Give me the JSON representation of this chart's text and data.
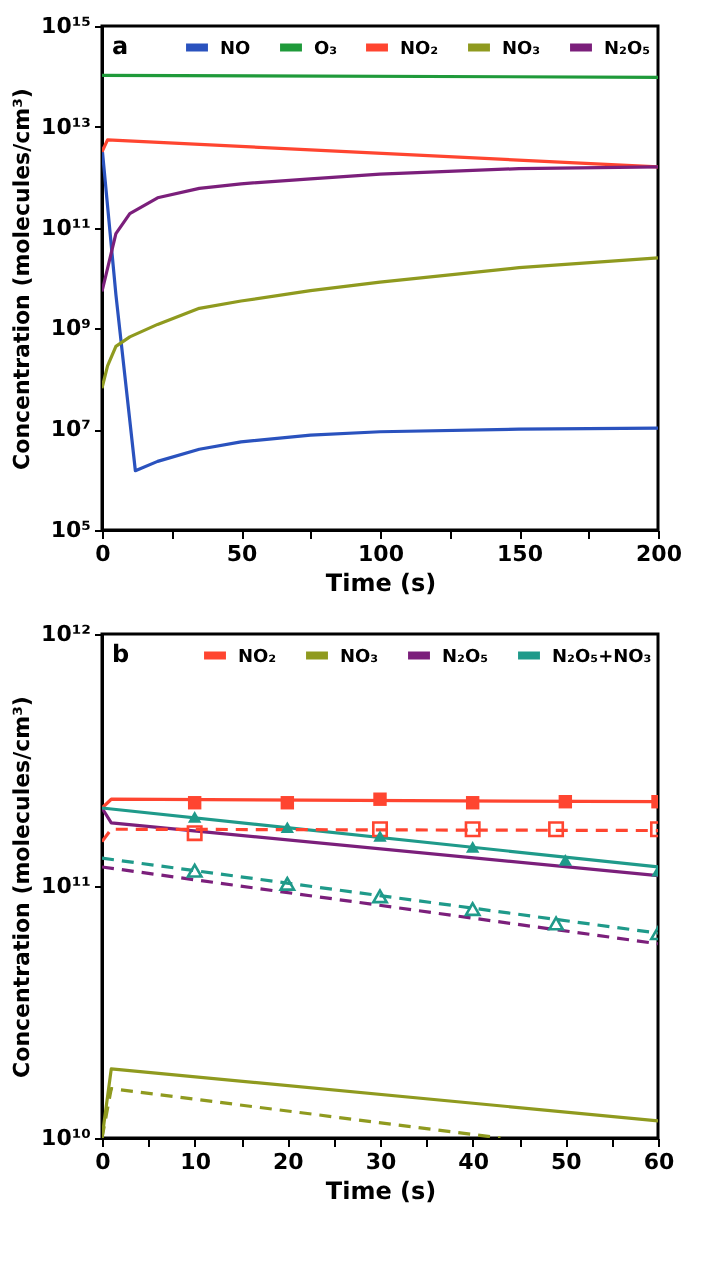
{
  "chart_data": [
    {
      "type": "line",
      "annotations": [
        "a"
      ],
      "xlabel": "Time (s)",
      "ylabel": "Concentration (molecules/cm³)",
      "log": "y",
      "legend": "top right",
      "grid": false,
      "xlim": [
        0,
        200
      ],
      "xticks": [
        0,
        {
          "value": 25,
          "label": null
        },
        50,
        {
          "value": 75,
          "label": null
        },
        100,
        {
          "value": 125,
          "label": null
        },
        150,
        {
          "value": 175,
          "label": null
        },
        200
      ],
      "ylim": [
        100000.0,
        1000000000000000.0
      ],
      "yticks": [
        {
          "value": 100000.0,
          "label": "10⁵"
        },
        {
          "value": 10000000.0,
          "label": "10⁷"
        },
        {
          "value": 1000000000.0,
          "label": "10⁹"
        },
        {
          "value": 100000000000.0,
          "label": "10¹¹"
        },
        {
          "value": 10000000000000.0,
          "label": "10¹³"
        },
        {
          "value": 1000000000000000.0,
          "label": "10¹⁵"
        }
      ],
      "series": [
        {
          "name": "NO",
          "color": "#2a52be",
          "x": [
            0,
            5,
            12,
            20,
            35,
            50,
            75,
            100,
            150,
            200
          ],
          "values": [
            4000000000000.0,
            4700000000.0,
            1500000.0,
            2300000.0,
            4000000.0,
            5600000.0,
            7600000.0,
            8900000.0,
            10000000.0,
            10500000.0
          ]
        },
        {
          "name": "O₃",
          "color": "#1f9a3a",
          "x": [
            0,
            200
          ],
          "values": [
            105000000000000.0,
            96000000000000.0
          ]
        },
        {
          "name": "NO₂",
          "color": "#ff4530",
          "x": [
            0,
            2,
            200
          ],
          "values": [
            3200000000000.0,
            5500000000000.0,
            1600000000000.0
          ]
        },
        {
          "name": "NO₃",
          "color": "#8f9a1f",
          "x": [
            0,
            2,
            5,
            10,
            20,
            35,
            50,
            75,
            100,
            150,
            200
          ],
          "values": [
            65000000.0,
            180000000.0,
            440000000.0,
            680000000.0,
            1200000000.0,
            2500000000.0,
            3500000000.0,
            5600000000.0,
            8300000000.0,
            16000000000.0,
            25000000000.0
          ]
        },
        {
          "name": "N₂O₅",
          "color": "#7b1f7b",
          "x": [
            0,
            5,
            10,
            20,
            35,
            50,
            75,
            100,
            150,
            200
          ],
          "values": [
            5400000000.0,
            76000000000.0,
            190000000000.0,
            390000000000.0,
            600000000000.0,
            740000000000.0,
            930000000000.0,
            1150000000000.0,
            1480000000000.0,
            1600000000000.0
          ]
        }
      ]
    },
    {
      "type": "line",
      "annotations": [
        "b"
      ],
      "xlabel": "Time (s)",
      "ylabel": "Concentration (molecules/cm³)",
      "log": "y",
      "legend": "top right",
      "grid": false,
      "xlim": [
        0,
        60
      ],
      "xticks": [
        0,
        {
          "value": 5,
          "label": null
        },
        10,
        {
          "value": 15,
          "label": null
        },
        20,
        {
          "value": 25,
          "label": null
        },
        30,
        {
          "value": 35,
          "label": null
        },
        40,
        {
          "value": 45,
          "label": null
        },
        50,
        {
          "value": 55,
          "label": null
        },
        60
      ],
      "ylim": [
        10000000000.0,
        1000000000000.0
      ],
      "yticks": [
        {
          "value": 10000000000.0,
          "label": "10¹⁰"
        },
        {
          "value": 100000000000.0,
          "label": "10¹¹"
        },
        {
          "value": 1000000000000.0,
          "label": "10¹²"
        }
      ],
      "series": [
        {
          "name": "NO₂",
          "color": "#ff4530",
          "x": [
            0,
            1,
            60
          ],
          "values": [
            204000000000.0,
            221000000000.0,
            216000000000.0
          ]
        },
        {
          "name": "NO₃",
          "color": "#8f9a1f",
          "x": [
            0,
            1,
            60
          ],
          "values": [
            10000000000.0,
            18800000000.0,
            11700000000.0
          ]
        },
        {
          "name": "N₂O₅",
          "color": "#7b1f7b",
          "x": [
            0,
            1,
            60
          ],
          "values": [
            204000000000.0,
            178000000000.0,
            110000000000.0
          ]
        },
        {
          "name": "N₂O₅+NO₃",
          "color": "#1f9a8a",
          "x": [
            0,
            60
          ],
          "values": [
            204000000000.0,
            119000000000.0
          ]
        },
        {
          "color": "#ff4530",
          "line_style": "dashed",
          "x": [
            0,
            1,
            60
          ],
          "values": [
            150000000000.0,
            168000000000.0,
            166000000000.0
          ]
        },
        {
          "color": "#8f9a1f",
          "line_style": "dashed",
          "x": [
            0,
            1,
            43
          ],
          "values": [
            10000000000.0,
            15700000000.0,
            10000000000.0
          ]
        },
        {
          "color": "#7b1f7b",
          "line_style": "dashed",
          "x": [
            0,
            60
          ],
          "values": [
            119000000000.0,
            59000000000.0
          ]
        },
        {
          "color": "#1f9a8a",
          "line_style": "dashed",
          "x": [
            0,
            60
          ],
          "values": [
            129000000000.0,
            65000000000.0
          ]
        },
        {
          "type": "scatter",
          "marker": "square",
          "color": "#ff4530",
          "x": [
            10,
            20,
            30,
            40,
            50,
            60
          ],
          "values": [
            214000000000.0,
            214000000000.0,
            221000000000.0,
            214000000000.0,
            216000000000.0,
            216000000000.0
          ]
        },
        {
          "type": "scatter",
          "marker": "square",
          "line_style": "dashed",
          "color": "#ff4530",
          "x": [
            10,
            30,
            40,
            49,
            60
          ],
          "values": [
            162000000000.0,
            168000000000.0,
            168000000000.0,
            168000000000.0,
            168000000000.0
          ]
        },
        {
          "type": "scatter",
          "marker": "triangle",
          "color": "#1f9a8a",
          "x": [
            10,
            20,
            30,
            40,
            50,
            60
          ],
          "values": [
            188000000000.0,
            171000000000.0,
            158000000000.0,
            143000000000.0,
            127000000000.0,
            115000000000.0
          ]
        },
        {
          "type": "scatter",
          "marker": "triangle",
          "line_style": "dashed",
          "color": "#1f9a8a",
          "x": [
            10,
            20,
            30,
            40,
            49,
            60
          ],
          "values": [
            115000000000.0,
            102000000000.0,
            91000000000.0,
            81000000000.0,
            71000000000.0,
            65000000000.0
          ]
        }
      ]
    }
  ]
}
